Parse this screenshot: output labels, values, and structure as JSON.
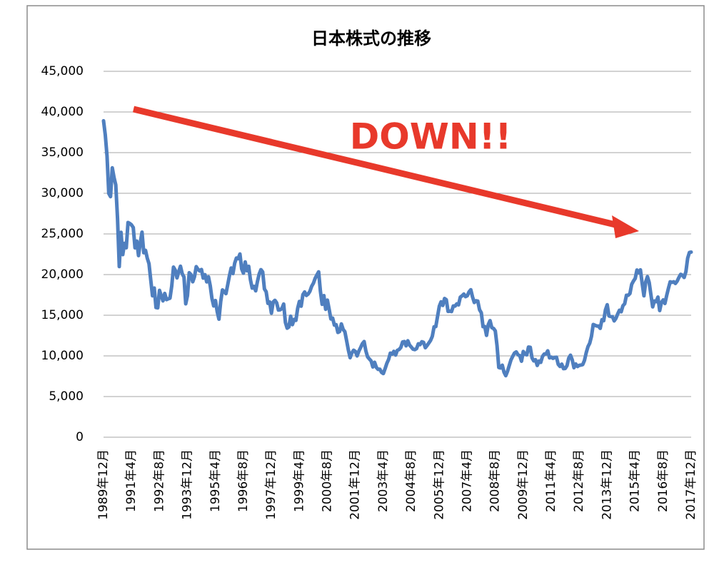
{
  "chart_data": {
    "type": "line",
    "title": "日本株式の推移",
    "annotation": "DOWN!!",
    "color": "#4f7fbf",
    "annotation_color": "#e8392b",
    "grid": true,
    "ylim": [
      0,
      45000
    ],
    "yticks": [
      0,
      {
        "value": 5000,
        "label": "5,000"
      },
      {
        "value": 10000,
        "label": "10,000"
      },
      {
        "value": 15000,
        "label": "15,000"
      },
      {
        "value": 20000,
        "label": "20,000"
      },
      {
        "value": 25000,
        "label": "25,000"
      },
      {
        "value": 30000,
        "label": "30,000"
      },
      {
        "value": 35000,
        "label": "35,000"
      },
      {
        "value": 40000,
        "label": "40,000"
      },
      {
        "value": 45000,
        "label": "45,000"
      }
    ],
    "categories": [
      "1989年12月",
      null,
      null,
      null,
      null,
      null,
      null,
      null,
      null,
      null,
      null,
      null,
      null,
      null,
      null,
      null,
      "1991年4月",
      null,
      null,
      null,
      null,
      null,
      null,
      null,
      null,
      null,
      null,
      null,
      null,
      null,
      null,
      null,
      "1992年8月",
      null,
      null,
      null,
      null,
      null,
      null,
      null,
      null,
      null,
      null,
      null,
      null,
      null,
      null,
      null,
      "1993年12月",
      null,
      null,
      null,
      null,
      null,
      null,
      null,
      null,
      null,
      null,
      null,
      null,
      null,
      null,
      null,
      "1995年4月",
      null,
      null,
      null,
      null,
      null,
      null,
      null,
      null,
      null,
      null,
      null,
      null,
      null,
      null,
      null,
      "1996年8月",
      null,
      null,
      null,
      null,
      null,
      null,
      null,
      null,
      null,
      null,
      null,
      null,
      null,
      null,
      null,
      "1997年12月",
      null,
      null,
      null,
      null,
      null,
      null,
      null,
      null,
      null,
      null,
      null,
      null,
      null,
      null,
      null,
      "1999年4月",
      null,
      null,
      null,
      null,
      null,
      null,
      null,
      null,
      null,
      null,
      null,
      null,
      null,
      null,
      null,
      "2000年8月",
      null,
      null,
      null,
      null,
      null,
      null,
      null,
      null,
      null,
      null,
      null,
      null,
      null,
      null,
      null,
      "2001年12月",
      null,
      null,
      null,
      null,
      null,
      null,
      null,
      null,
      null,
      null,
      null,
      null,
      null,
      null,
      null,
      "2003年4月",
      null,
      null,
      null,
      null,
      null,
      null,
      null,
      null,
      null,
      null,
      null,
      null,
      null,
      null,
      null,
      "2004年8月",
      null,
      null,
      null,
      null,
      null,
      null,
      null,
      null,
      null,
      null,
      null,
      null,
      null,
      null,
      null,
      "2005年12月",
      null,
      null,
      null,
      null,
      null,
      null,
      null,
      null,
      null,
      null,
      null,
      null,
      null,
      null,
      null,
      "2007年4月",
      null,
      null,
      null,
      null,
      null,
      null,
      null,
      null,
      null,
      null,
      null,
      null,
      null,
      null,
      null,
      "2008年8月",
      null,
      null,
      null,
      null,
      null,
      null,
      null,
      null,
      null,
      null,
      null,
      null,
      null,
      null,
      null,
      "2009年12月",
      null,
      null,
      null,
      null,
      null,
      null,
      null,
      null,
      null,
      null,
      null,
      null,
      null,
      null,
      null,
      "2011年4月",
      null,
      null,
      null,
      null,
      null,
      null,
      null,
      null,
      null,
      null,
      null,
      null,
      null,
      null,
      null,
      "2012年8月",
      null,
      null,
      null,
      null,
      null,
      null,
      null,
      null,
      null,
      null,
      null,
      null,
      null,
      null,
      null,
      "2013年12月",
      null,
      null,
      null,
      null,
      null,
      null,
      null,
      null,
      null,
      null,
      null,
      null,
      null,
      null,
      null,
      "2015年4月",
      null,
      null,
      null,
      null,
      null,
      null,
      null,
      null,
      null,
      null,
      null,
      null,
      null,
      null,
      null,
      "2016年8月",
      null,
      null,
      null,
      null,
      null,
      null,
      null,
      null,
      null,
      null,
      null,
      null,
      null,
      null,
      null,
      "2017年12月"
    ],
    "values": [
      38916,
      37189,
      34592,
      29980,
      29585,
      33131,
      31940,
      31036,
      26906,
      20984,
      25194,
      22455,
      23849,
      23293,
      26409,
      26292,
      26111,
      25790,
      23291,
      24121,
      22336,
      23916,
      25222,
      22687,
      22984,
      22023,
      21339,
      19346,
      17391,
      18348,
      15952,
      15910,
      18061,
      17399,
      16767,
      17684,
      16925,
      17024,
      17098,
      18591,
      20919,
      20552,
      19590,
      20380,
      21027,
      20106,
      19703,
      16408,
      17417,
      20229,
      19997,
      19112,
      19725,
      20974,
      20644,
      20449,
      20629,
      19564,
      19990,
      19098,
      19723,
      18650,
      17053,
      16140,
      16807,
      15437,
      14517,
      16678,
      18117,
      17913,
      17655,
      18744,
      19868,
      20813,
      20125,
      21407,
      22041,
      21956,
      22531,
      20693,
      20167,
      21556,
      20467,
      21020,
      19361,
      18330,
      18557,
      18003,
      19151,
      20069,
      20605,
      20331,
      18229,
      17888,
      16459,
      16636,
      15259,
      16628,
      16832,
      16527,
      15642,
      15671,
      15831,
      16379,
      14108,
      13406,
      13564,
      14884,
      13842,
      14500,
      14368,
      15837,
      16702,
      16112,
      17530,
      17862,
      17437,
      17606,
      17943,
      18558,
      18934,
      19540,
      19960,
      20337,
      17974,
      16333,
      17411,
      15727,
      16861,
      15747,
      14540,
      14649,
      13786,
      13844,
      12884,
      13000,
      13934,
      13262,
      12969,
      11861,
      10714,
      9775,
      10367,
      10698,
      10543,
      9998,
      10588,
      11025,
      11493,
      11764,
      10622,
      9878,
      9619,
      9383,
      8640,
      9216,
      8579,
      8340,
      8363,
      7973,
      7831,
      8425,
      9083,
      9563,
      10344,
      10219,
      10560,
      10101,
      10677,
      10783,
      11042,
      11715,
      11762,
      11236,
      11859,
      11326,
      11082,
      10824,
      10771,
      10899,
      11489,
      11388,
      11740,
      11669,
      11009,
      11277,
      11585,
      11900,
      12414,
      13574,
      13607,
      14872,
      16111,
      16650,
      16205,
      17060,
      16906,
      15468,
      15505,
      15457,
      16141,
      16128,
      16399,
      16274,
      17226,
      17383,
      17604,
      17288,
      17400,
      17876,
      18138,
      17249,
      16569,
      16786,
      16738,
      15681,
      15308,
      13592,
      13604,
      12526,
      13850,
      14339,
      13481,
      13377,
      13073,
      11260,
      8577,
      8512,
      8860,
      7994,
      7568,
      8110,
      8828,
      9523,
      9958,
      10357,
      10493,
      10133,
      10035,
      9346,
      10546,
      10198,
      10126,
      11090,
      11057,
      9769,
      9383,
      9537,
      8824,
      9369,
      9202,
      9937,
      10229,
      10238,
      10624,
      9755,
      9850,
      9694,
      9816,
      9833,
      8955,
      8700,
      8988,
      8435,
      8455,
      8803,
      9723,
      10084,
      9521,
      8543,
      9007,
      8695,
      8840,
      8870,
      8928,
      9446,
      10395,
      11139,
      11559,
      12398,
      13861,
      13775,
      13677,
      13668,
      13389,
      14456,
      14328,
      15662,
      16291,
      14915,
      14841,
      14828,
      14304,
      14632,
      15162,
      15621,
      15425,
      16174,
      16414,
      17460,
      17451,
      17674,
      18798,
      19207,
      19520,
      20563,
      20236,
      20585,
      18890,
      17388,
      19083,
      19747,
      19034,
      17518,
      16027,
      16759,
      16666,
      17235,
      15576,
      16569,
      16887,
      16450,
      17425,
      18308,
      19114,
      19041,
      19119,
      18909,
      19197,
      19651,
      20033,
      19925,
      19646,
      20356,
      22012,
      22725,
      22765
    ]
  }
}
